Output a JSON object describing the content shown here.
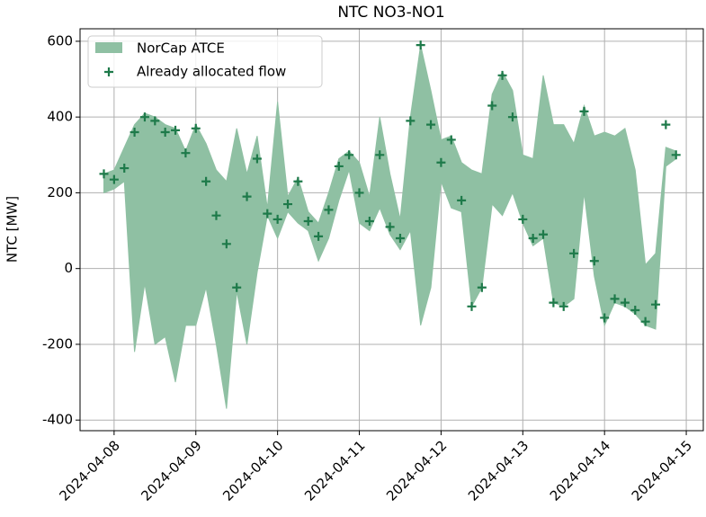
{
  "chart_data": {
    "type": "band_scatter",
    "title": "NTC NO3-NO1",
    "ylabel": "NTC [MW]",
    "x": [
      "2024-04-07T21:00",
      "2024-04-08T00:00",
      "2024-04-08T03:00",
      "2024-04-08T06:00",
      "2024-04-08T09:00",
      "2024-04-08T12:00",
      "2024-04-08T15:00",
      "2024-04-08T18:00",
      "2024-04-08T21:00",
      "2024-04-09T00:00",
      "2024-04-09T03:00",
      "2024-04-09T06:00",
      "2024-04-09T09:00",
      "2024-04-09T12:00",
      "2024-04-09T15:00",
      "2024-04-09T18:00",
      "2024-04-09T21:00",
      "2024-04-10T00:00",
      "2024-04-10T03:00",
      "2024-04-10T06:00",
      "2024-04-10T09:00",
      "2024-04-10T12:00",
      "2024-04-10T15:00",
      "2024-04-10T18:00",
      "2024-04-10T21:00",
      "2024-04-11T00:00",
      "2024-04-11T03:00",
      "2024-04-11T06:00",
      "2024-04-11T09:00",
      "2024-04-11T12:00",
      "2024-04-11T15:00",
      "2024-04-11T18:00",
      "2024-04-11T21:00",
      "2024-04-12T00:00",
      "2024-04-12T03:00",
      "2024-04-12T06:00",
      "2024-04-12T09:00",
      "2024-04-12T12:00",
      "2024-04-12T15:00",
      "2024-04-12T18:00",
      "2024-04-12T21:00",
      "2024-04-13T00:00",
      "2024-04-13T03:00",
      "2024-04-13T06:00",
      "2024-04-13T09:00",
      "2024-04-13T12:00",
      "2024-04-13T15:00",
      "2024-04-13T18:00",
      "2024-04-13T21:00",
      "2024-04-14T00:00",
      "2024-04-14T03:00",
      "2024-04-14T06:00",
      "2024-04-14T09:00",
      "2024-04-14T12:00",
      "2024-04-14T15:00",
      "2024-04-14T18:00",
      "2024-04-14T21:00"
    ],
    "series": [
      {
        "name": "NorCap ATCE",
        "color": "#8fc0a3",
        "values": [
          250,
          260,
          320,
          380,
          410,
          400,
          380,
          370,
          310,
          380,
          330,
          260,
          230,
          370,
          250,
          350,
          160,
          440,
          190,
          240,
          150,
          120,
          200,
          290,
          310,
          280,
          190,
          400,
          250,
          130,
          400,
          590,
          470,
          340,
          350,
          280,
          260,
          250,
          460,
          520,
          470,
          300,
          290,
          510,
          380,
          380,
          330,
          430,
          350,
          360,
          350,
          370,
          260,
          10,
          40,
          320,
          310
        ],
        "lower": [
          200,
          210,
          230,
          -220,
          -40,
          -200,
          -180,
          -300,
          -150,
          -150,
          -50,
          -200,
          -370,
          -60,
          -200,
          -10,
          140,
          80,
          150,
          120,
          100,
          20,
          80,
          180,
          260,
          120,
          100,
          160,
          90,
          50,
          100,
          -150,
          -50,
          230,
          160,
          150,
          -100,
          -50,
          170,
          140,
          200,
          120,
          60,
          80,
          -90,
          -100,
          -80,
          200,
          -20,
          -150,
          -90,
          -100,
          -120,
          -150,
          -160,
          270,
          290
        ]
      },
      {
        "name": "Already allocated flow",
        "color": "#1e7a4a",
        "values": [
          250,
          235,
          265,
          360,
          400,
          390,
          360,
          365,
          305,
          370,
          230,
          140,
          65,
          -50,
          190,
          290,
          145,
          130,
          170,
          230,
          125,
          85,
          155,
          270,
          300,
          200,
          125,
          300,
          110,
          80,
          390,
          590,
          380,
          280,
          340,
          180,
          -100,
          -50,
          430,
          510,
          400,
          130,
          80,
          90,
          -90,
          -100,
          40,
          415,
          20,
          -130,
          -80,
          -90,
          -110,
          -140,
          -95,
          380,
          300
        ]
      }
    ],
    "xlim": [
      "2024-04-07T14:00",
      "2024-04-15T05:00"
    ],
    "xticks": [
      "2024-04-08",
      "2024-04-09",
      "2024-04-10",
      "2024-04-11",
      "2024-04-12",
      "2024-04-13",
      "2024-04-14",
      "2024-04-15"
    ],
    "ylim": [
      -428,
      633
    ],
    "yticks": [
      -400,
      -200,
      0,
      200,
      400,
      600
    ],
    "grid": true,
    "legend": "upper left"
  }
}
